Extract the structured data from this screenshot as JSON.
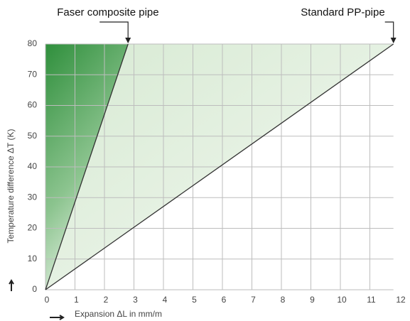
{
  "chart_data": {
    "type": "line",
    "series": [
      {
        "name": "Faser composite pipe",
        "color": "#333333",
        "x": [
          0,
          2.8
        ],
        "values": [
          0,
          80
        ]
      },
      {
        "name": "Standard PP-pipe",
        "color": "#333333",
        "x": [
          0,
          11.8
        ],
        "values": [
          0,
          80
        ]
      }
    ],
    "xlim": [
      0,
      12
    ],
    "xticks": [
      0,
      1,
      2,
      3,
      4,
      5,
      6,
      7,
      8,
      9,
      10,
      11,
      12
    ],
    "ylim": [
      0,
      80
    ],
    "yticks": [
      0,
      10,
      20,
      30,
      40,
      50,
      60,
      70,
      80
    ],
    "xlabel": "Expansion ΔL in mm/m",
    "ylabel": "Temperature difference ΔT (K)",
    "grid": true
  }
}
